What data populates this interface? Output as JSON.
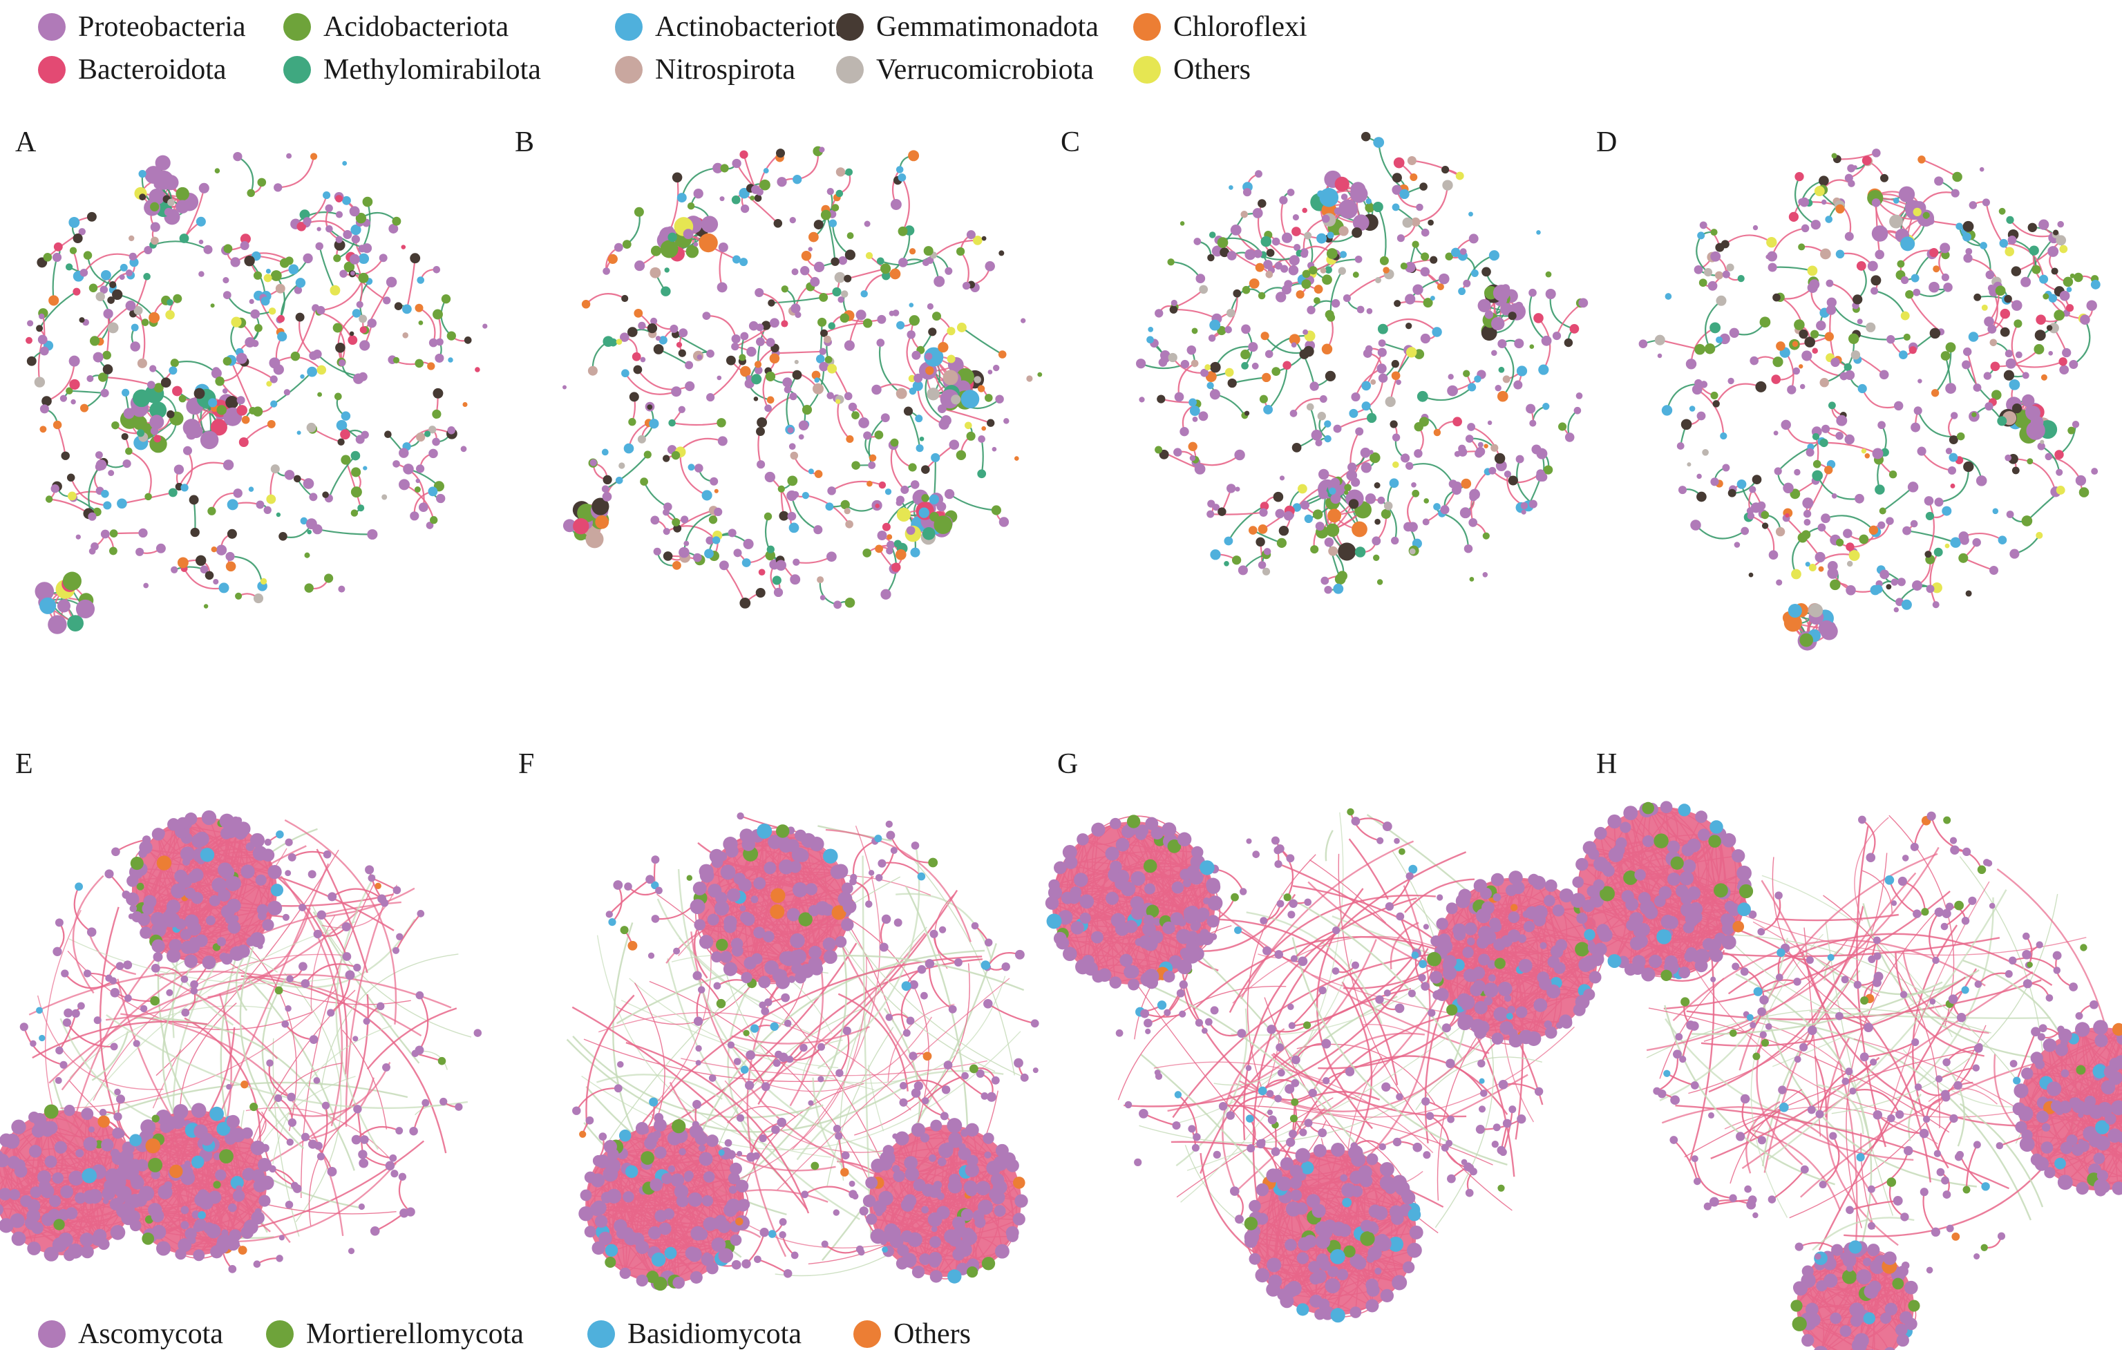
{
  "bacteria_legend": [
    {
      "label": "Proteobacteria",
      "color": "#b07ab8"
    },
    {
      "label": "Acidobacteriota",
      "color": "#6ea33a"
    },
    {
      "label": "Actinobacteriota",
      "color": "#4fb0dc"
    },
    {
      "label": "Gemmatimonadota",
      "color": "#463a33"
    },
    {
      "label": "Chloroflexi",
      "color": "#ec7e34"
    },
    {
      "label": "Bacteroidota",
      "color": "#e34a73"
    },
    {
      "label": "Methylomirabilota",
      "color": "#3fa880"
    },
    {
      "label": "Nitrospirota",
      "color": "#c9a79f"
    },
    {
      "label": "Verrucomicrobiota",
      "color": "#bdb6b0"
    },
    {
      "label": "Others",
      "color": "#e6e652"
    }
  ],
  "fungi_legend": [
    {
      "label": "Ascomycota",
      "color": "#b07ab8"
    },
    {
      "label": "Mortierellomycota",
      "color": "#6ea33a"
    },
    {
      "label": "Basidiomycota",
      "color": "#4fb0dc"
    },
    {
      "label": "Others",
      "color": "#ec7e34"
    }
  ],
  "edge_colors": {
    "positive": "#e8668a",
    "negative": "#3a9a6c",
    "fungal_negative": "#c5dbb8"
  },
  "panels": [
    {
      "label": "A",
      "kind": "bacteria",
      "seed": 11,
      "modules": 4
    },
    {
      "label": "B",
      "kind": "bacteria",
      "seed": 23,
      "modules": 4
    },
    {
      "label": "C",
      "kind": "bacteria",
      "seed": 37,
      "modules": 3
    },
    {
      "label": "D",
      "kind": "bacteria",
      "seed": 41,
      "modules": 3
    },
    {
      "label": "E",
      "kind": "fungi",
      "seed": 53,
      "modules": 3
    },
    {
      "label": "F",
      "kind": "fungi",
      "seed": 67,
      "modules": 3
    },
    {
      "label": "G",
      "kind": "fungi",
      "seed": 71,
      "modules": 3
    },
    {
      "label": "H",
      "kind": "fungi",
      "seed": 83,
      "modules": 3
    }
  ]
}
